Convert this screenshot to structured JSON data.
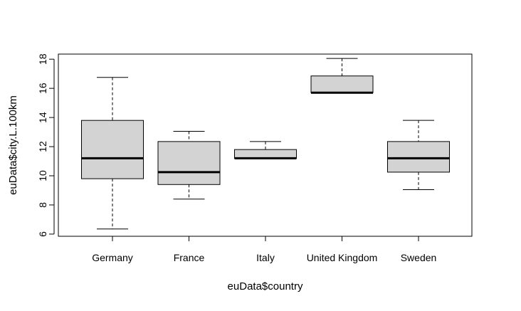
{
  "chart_data": {
    "type": "boxplot",
    "title": "",
    "xlabel": "euData$country",
    "ylabel": "euData$city.L.100km",
    "ylim": [
      6,
      18
    ],
    "yticks": [
      6,
      8,
      10,
      12,
      14,
      16,
      18
    ],
    "y_range": [
      5.85,
      18.35
    ],
    "grid": false,
    "box_fill": "#d3d3d3",
    "categories": [
      "Germany",
      "France",
      "Italy",
      "United Kingdom",
      "Sweden"
    ],
    "boxes": [
      {
        "name": "Germany",
        "whisker_low": 6.35,
        "q1": 9.8,
        "median": 11.2,
        "q3": 13.8,
        "whisker_high": 16.75
      },
      {
        "name": "France",
        "whisker_low": 8.4,
        "q1": 9.4,
        "median": 10.25,
        "q3": 12.35,
        "whisker_high": 13.05
      },
      {
        "name": "Italy",
        "whisker_low": 11.2,
        "q1": 11.2,
        "median": 11.2,
        "q3": 11.8,
        "whisker_high": 12.35
      },
      {
        "name": "United Kingdom",
        "whisker_low": 15.7,
        "q1": 15.7,
        "median": 15.7,
        "q3": 16.85,
        "whisker_high": 18.05
      },
      {
        "name": "Sweden",
        "whisker_low": 9.05,
        "q1": 10.25,
        "median": 11.2,
        "q3": 12.35,
        "whisker_high": 13.8
      }
    ]
  }
}
